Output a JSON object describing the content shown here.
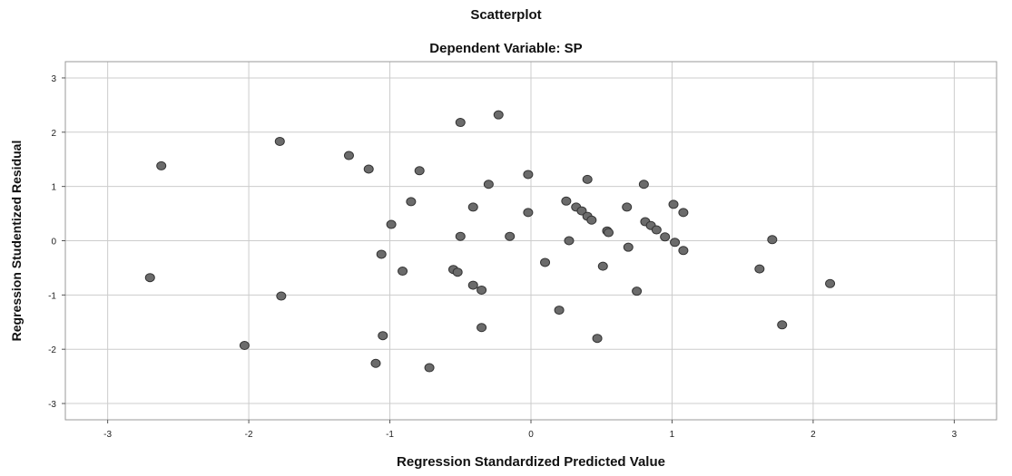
{
  "chart_data": {
    "type": "scatter",
    "title": "Scatterplot",
    "subtitle": "Dependent Variable: SP",
    "xlabel": "Regression Standardized Predicted Value",
    "ylabel": "Regression Studentized Residual",
    "xlim": [
      -3.3,
      3.3
    ],
    "ylim": [
      -3.3,
      3.3
    ],
    "xticks": [
      -3,
      -2,
      -1,
      0,
      1,
      2,
      3
    ],
    "yticks": [
      -3,
      -2,
      -1,
      0,
      1,
      2,
      3
    ],
    "xtick_labels": [
      "-3",
      "-2",
      "-1",
      "0",
      "1",
      "2",
      "3"
    ],
    "ytick_labels": [
      "-3",
      "-2",
      "-1",
      "0",
      "1",
      "2",
      "3"
    ],
    "grid": true,
    "colors": {
      "point_fill": "#6b6b6b",
      "point_stroke": "#333333",
      "grid": "#cccccc"
    },
    "points": [
      {
        "x": -2.62,
        "y": 1.38
      },
      {
        "x": -2.7,
        "y": -0.68
      },
      {
        "x": -2.03,
        "y": -1.93
      },
      {
        "x": -1.78,
        "y": 1.83
      },
      {
        "x": -1.77,
        "y": -1.02
      },
      {
        "x": -1.29,
        "y": 1.57
      },
      {
        "x": -1.15,
        "y": 1.32
      },
      {
        "x": -1.1,
        "y": -2.26
      },
      {
        "x": -1.06,
        "y": -0.25
      },
      {
        "x": -1.05,
        "y": -1.75
      },
      {
        "x": -0.99,
        "y": 0.3
      },
      {
        "x": -0.91,
        "y": -0.56
      },
      {
        "x": -0.85,
        "y": 0.72
      },
      {
        "x": -0.79,
        "y": 1.29
      },
      {
        "x": -0.72,
        "y": -2.34
      },
      {
        "x": -0.55,
        "y": -0.53
      },
      {
        "x": -0.52,
        "y": -0.58
      },
      {
        "x": -0.5,
        "y": 2.18
      },
      {
        "x": -0.5,
        "y": 0.08
      },
      {
        "x": -0.41,
        "y": 0.62
      },
      {
        "x": -0.41,
        "y": -0.82
      },
      {
        "x": -0.35,
        "y": -0.91
      },
      {
        "x": -0.35,
        "y": -1.6
      },
      {
        "x": -0.3,
        "y": 1.04
      },
      {
        "x": -0.23,
        "y": 2.32
      },
      {
        "x": -0.15,
        "y": 0.08
      },
      {
        "x": -0.02,
        "y": 1.22
      },
      {
        "x": -0.02,
        "y": 0.52
      },
      {
        "x": 0.1,
        "y": -0.4
      },
      {
        "x": 0.2,
        "y": -1.28
      },
      {
        "x": 0.25,
        "y": 0.73
      },
      {
        "x": 0.27,
        "y": 0.0
      },
      {
        "x": 0.32,
        "y": 0.62
      },
      {
        "x": 0.36,
        "y": 0.55
      },
      {
        "x": 0.4,
        "y": 0.45
      },
      {
        "x": 0.4,
        "y": 1.13
      },
      {
        "x": 0.43,
        "y": 0.38
      },
      {
        "x": 0.47,
        "y": -1.8
      },
      {
        "x": 0.51,
        "y": -0.47
      },
      {
        "x": 0.54,
        "y": 0.18
      },
      {
        "x": 0.55,
        "y": 0.15
      },
      {
        "x": 0.68,
        "y": 0.62
      },
      {
        "x": 0.69,
        "y": -0.12
      },
      {
        "x": 0.75,
        "y": -0.93
      },
      {
        "x": 0.8,
        "y": 1.04
      },
      {
        "x": 0.81,
        "y": 0.35
      },
      {
        "x": 0.85,
        "y": 0.28
      },
      {
        "x": 0.89,
        "y": 0.2
      },
      {
        "x": 0.95,
        "y": 0.07
      },
      {
        "x": 1.01,
        "y": 0.67
      },
      {
        "x": 1.02,
        "y": -0.03
      },
      {
        "x": 1.08,
        "y": 0.52
      },
      {
        "x": 1.08,
        "y": -0.18
      },
      {
        "x": 1.62,
        "y": -0.52
      },
      {
        "x": 1.71,
        "y": 0.02
      },
      {
        "x": 1.78,
        "y": -1.55
      },
      {
        "x": 2.12,
        "y": -0.79
      }
    ]
  }
}
